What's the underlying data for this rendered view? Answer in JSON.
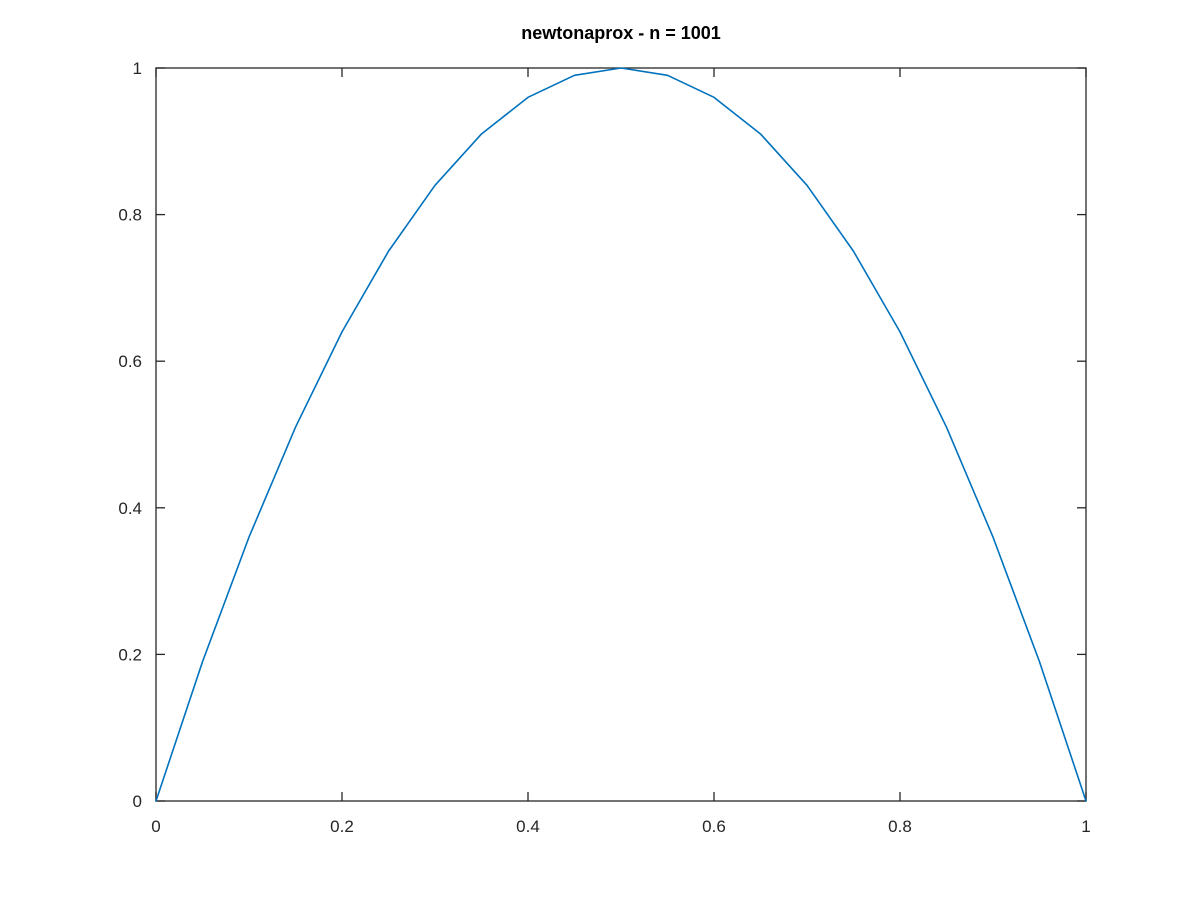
{
  "chart_data": {
    "type": "line",
    "title": "newtonaprox - n = 1001",
    "xlabel": "",
    "ylabel": "",
    "xlim": [
      0,
      1
    ],
    "ylim": [
      0,
      1
    ],
    "x_ticks": [
      0,
      0.2,
      0.4,
      0.6,
      0.8,
      1
    ],
    "x_tick_labels": [
      "0",
      "0.2",
      "0.4",
      "0.6",
      "0.8",
      "1"
    ],
    "y_ticks": [
      0,
      0.2,
      0.4,
      0.6,
      0.8,
      1
    ],
    "y_tick_labels": [
      "0",
      "0.2",
      "0.4",
      "0.6",
      "0.8",
      "1"
    ],
    "grid": false,
    "series": [
      {
        "color": "#0072bd",
        "x": [
          0,
          0.05,
          0.1,
          0.15,
          0.2,
          0.25,
          0.3,
          0.35,
          0.4,
          0.45,
          0.5,
          0.55,
          0.6,
          0.65,
          0.7,
          0.75,
          0.8,
          0.85,
          0.9,
          0.95,
          1
        ],
        "y": [
          0,
          0.19,
          0.36,
          0.51,
          0.64,
          0.75,
          0.84,
          0.91,
          0.96,
          0.99,
          1,
          0.99,
          0.96,
          0.91,
          0.84,
          0.75,
          0.64,
          0.51,
          0.36,
          0.19,
          0
        ]
      }
    ]
  }
}
